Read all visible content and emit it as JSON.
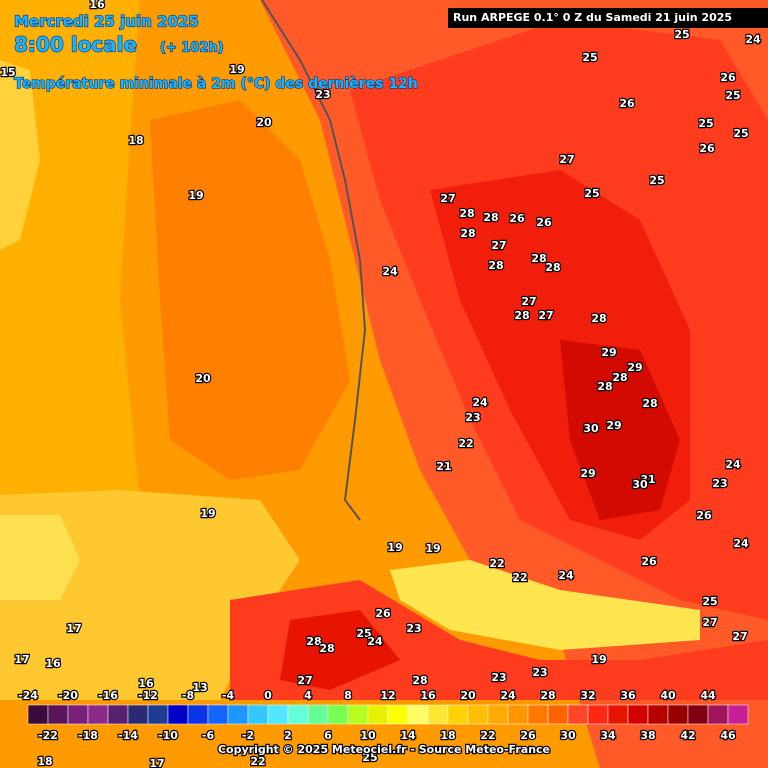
{
  "header": {
    "date": "Mercredi 25 juin 2025",
    "time": "8:00 locale",
    "lead": "(+ 102h)",
    "title": "Température minimale à 2m (°C) des dernières 12h",
    "run": "Run ARPEGE 0.1° 0 Z du Samedi 21 juin 2025"
  },
  "legend": {
    "top_labels": [
      "-24",
      "-20",
      "-16",
      "-12",
      "-8",
      "-4",
      "0",
      "4",
      "8",
      "12",
      "16",
      "20",
      "24",
      "28",
      "32",
      "36",
      "40",
      "44"
    ],
    "bottom_labels": [
      "-22",
      "-18",
      "-14",
      "-10",
      "-6",
      "-2",
      "2",
      "6",
      "10",
      "14",
      "18",
      "22",
      "26",
      "30",
      "34",
      "38",
      "42",
      "46"
    ],
    "colors": [
      "#3c0a3c",
      "#5a145a",
      "#7a1e7a",
      "#8c2a8c",
      "#5a2070",
      "#2a2a72",
      "#1e3c96",
      "#0000c8",
      "#0a32e6",
      "#1464ff",
      "#1e96ff",
      "#32c8ff",
      "#50e6ff",
      "#64ffd8",
      "#64ff96",
      "#78ff50",
      "#b4ff1e",
      "#e6f000",
      "#ffff00",
      "#ffff64",
      "#ffe632",
      "#ffd200",
      "#ffbe00",
      "#ffaa00",
      "#ff9600",
      "#ff7800",
      "#ff6400",
      "#ff4628",
      "#ff2814",
      "#e61400",
      "#d20000",
      "#b40000",
      "#960000",
      "#820014",
      "#a0145a",
      "#c81e96"
    ]
  },
  "map_labels": [
    "16",
    "15",
    "19",
    "23",
    "20",
    "18",
    "19",
    "20",
    "27",
    "26",
    "25",
    "25",
    "24",
    "26",
    "25",
    "25",
    "25",
    "26",
    "25",
    "25",
    "27",
    "28",
    "28",
    "26",
    "26",
    "28",
    "27",
    "28",
    "28",
    "28",
    "24",
    "27",
    "28",
    "27",
    "28",
    "29",
    "29",
    "28",
    "28",
    "28",
    "30",
    "29",
    "24",
    "23",
    "22",
    "21",
    "29",
    "31",
    "30",
    "24",
    "23",
    "26",
    "19",
    "19",
    "19",
    "22",
    "24",
    "22",
    "26",
    "23",
    "28",
    "28",
    "25",
    "24",
    "27",
    "28",
    "23",
    "23",
    "19",
    "17",
    "17",
    "16",
    "16",
    "13",
    "26",
    "25",
    "24",
    "27",
    "27",
    "18",
    "17",
    "22",
    "25"
  ],
  "credit": "Copyright © 2025 Meteociel.fr - Source Meteo-France"
}
